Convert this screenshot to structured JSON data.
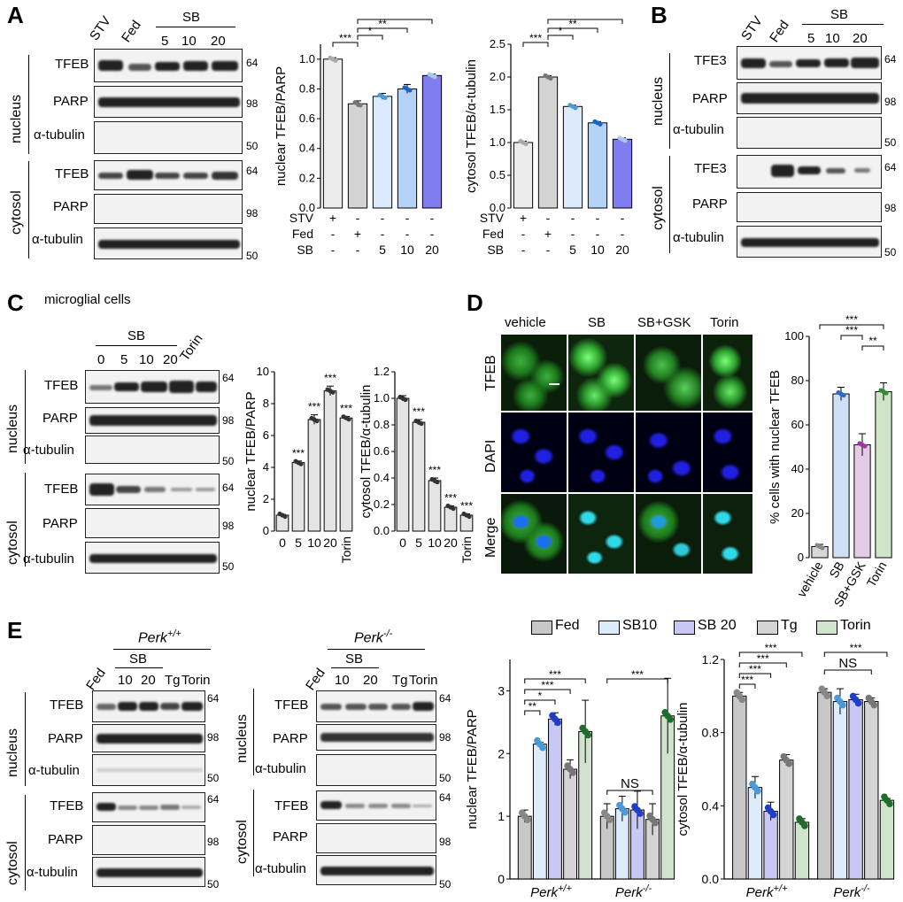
{
  "panels": {
    "A": "A",
    "B": "B",
    "C": "C",
    "D": "D",
    "E": "E"
  },
  "common": {
    "nucleus": "nucleus",
    "cytosol": "cytosol",
    "tfeb": "TFEB",
    "tfe3": "TFE3",
    "parp": "PARP",
    "tubulin": "α-tubulin",
    "stv": "STV",
    "fed": "Fed",
    "sb": "SB",
    "tg": "Tg",
    "torin": "Torin",
    "mw64": "64",
    "mw98": "98",
    "mw50": "50",
    "s5": "5",
    "s10": "10",
    "s20": "20",
    "s0": "0"
  },
  "panel_c_title": "microglial cells",
  "panel_d": {
    "cols": [
      "vehicle",
      "SB",
      "SB+GSK",
      "Torin"
    ],
    "rows": [
      "TFEB",
      "DAPI",
      "Merge"
    ]
  },
  "panel_e": {
    "perk_wt": "Perk",
    "perk_ko": "Perk",
    "sup_wt": "+/+",
    "sup_ko": "-/-",
    "legend": [
      {
        "label": "Fed",
        "color": "#c8c8c8"
      },
      {
        "label": "SB10",
        "color": "#dcecfb"
      },
      {
        "label": "SB 20",
        "color": "#c9c8f4"
      },
      {
        "label": "Tg",
        "color": "#d4d4d4"
      },
      {
        "label": "Torin",
        "color": "#cfe3cd"
      }
    ]
  },
  "treat_table": {
    "rows": [
      "STV",
      "Fed",
      "SB"
    ],
    "vals": [
      [
        "+",
        "-",
        "-",
        "-",
        "-"
      ],
      [
        "-",
        "+",
        "-",
        "-",
        "-"
      ],
      [
        "-",
        "-",
        "5",
        "10",
        "20"
      ]
    ]
  },
  "chart_data": [
    {
      "id": "A_nuclear",
      "type": "bar",
      "ylabel": "nuclear TFEB/PARP",
      "ylim": [
        0,
        1.1
      ],
      "yticks": [
        "0.0",
        "0.2",
        "0.4",
        "0.6",
        "0.8",
        "1.0"
      ],
      "tickvals": [
        0,
        0.2,
        0.4,
        0.6,
        0.8,
        1.0
      ],
      "values": [
        1.0,
        0.7,
        0.75,
        0.8,
        0.89
      ],
      "errors": [
        0.01,
        0.02,
        0.02,
        0.03,
        0.01
      ],
      "colors": [
        "#ececec",
        "#d4d4d4",
        "#dcebfb",
        "#b5d2f7",
        "#7f7df0"
      ],
      "dotcolors": [
        "#aaaaaa",
        "#777777",
        "#4a9ad8",
        "#1f5fd0",
        "#a8c8f0"
      ],
      "sig": [
        {
          "a": 0,
          "b": 1,
          "t": "***"
        },
        {
          "a": 1,
          "b": 2,
          "t": "*"
        },
        {
          "a": 1,
          "b": 3,
          "t": "**"
        },
        {
          "a": 1,
          "b": 4,
          "t": "***"
        }
      ]
    },
    {
      "id": "A_cytosol",
      "type": "bar",
      "ylabel": "cytosol TFEB/α-tubulin",
      "ylim": [
        0,
        2.5
      ],
      "yticks": [
        "0.0",
        "0.5",
        "1.0",
        "1.5",
        "2.0",
        "2.5"
      ],
      "tickvals": [
        0,
        0.5,
        1.0,
        1.5,
        2.0,
        2.5
      ],
      "values": [
        1.0,
        2.0,
        1.55,
        1.3,
        1.05
      ],
      "errors": [
        0.02,
        0.02,
        0.02,
        0.02,
        0.02
      ],
      "colors": [
        "#ececec",
        "#d4d4d4",
        "#dcebfb",
        "#b5d2f7",
        "#7f7df0"
      ],
      "dotcolors": [
        "#aaaaaa",
        "#777777",
        "#4a9ad8",
        "#1f5fd0",
        "#a8c8f0"
      ],
      "sig": [
        {
          "a": 0,
          "b": 1,
          "t": "***"
        },
        {
          "a": 1,
          "b": 2,
          "t": "*"
        },
        {
          "a": 1,
          "b": 3,
          "t": "**"
        },
        {
          "a": 1,
          "b": 4,
          "t": "***"
        }
      ]
    },
    {
      "id": "C_nuclear",
      "type": "bar",
      "ylabel": "nuclear TFEB/PARP",
      "ylim": [
        0,
        10
      ],
      "yticks": [
        "0",
        "2",
        "4",
        "6",
        "8",
        "10"
      ],
      "tickvals": [
        0,
        2,
        4,
        6,
        8,
        10
      ],
      "categories": [
        "0",
        "5",
        "10",
        "20",
        "Torin"
      ],
      "values": [
        1.0,
        4.3,
        7.0,
        8.8,
        7.1
      ],
      "errors": [
        0.05,
        0.1,
        0.3,
        0.3,
        0.1
      ],
      "labels": [
        "",
        "***",
        "***",
        "***",
        "***"
      ]
    },
    {
      "id": "C_cytosol",
      "type": "bar",
      "ylabel": "cytosol TFEB/α-tubulin",
      "ylim": [
        0,
        1.2
      ],
      "yticks": [
        "0.0",
        "0.2",
        "0.4",
        "0.6",
        "0.8",
        "1.0",
        "1.2"
      ],
      "tickvals": [
        0,
        0.2,
        0.4,
        0.6,
        0.8,
        1.0,
        1.2
      ],
      "categories": [
        "0",
        "5",
        "10",
        "20",
        "Torin"
      ],
      "values": [
        1.0,
        0.82,
        0.38,
        0.18,
        0.12
      ],
      "errors": [
        0.02,
        0.02,
        0.02,
        0.01,
        0.01
      ],
      "labels": [
        "",
        "***",
        "***",
        "***",
        "***"
      ]
    },
    {
      "id": "D_pct",
      "type": "bar",
      "ylabel": "% cells with nuclear TFEB",
      "ylim": [
        0,
        100
      ],
      "yticks": [
        "0",
        "20",
        "40",
        "60",
        "80",
        "100"
      ],
      "tickvals": [
        0,
        20,
        40,
        60,
        80,
        100
      ],
      "categories": [
        "vehicle",
        "SB",
        "SB+GSK",
        "Torin"
      ],
      "values": [
        5,
        74,
        51,
        75
      ],
      "errors": [
        1,
        3,
        5,
        4
      ],
      "colors": [
        "#d8d8d8",
        "#cfe0f6",
        "#e6cbe6",
        "#cfe5c8"
      ],
      "dotcolors": [
        "#888888",
        "#2b6dc9",
        "#a035a8",
        "#2e8b38"
      ],
      "sig": [
        {
          "a": 0,
          "b": 3,
          "t": "***"
        },
        {
          "a": 1,
          "b": 2,
          "t": "***"
        },
        {
          "a": 2,
          "b": 3,
          "t": "**"
        }
      ]
    },
    {
      "id": "E_nuclear",
      "type": "bar",
      "ylabel": "nuclear TFEB/PARP",
      "ylim": [
        0,
        3.5
      ],
      "yticks": [
        "0",
        "1",
        "2",
        "3"
      ],
      "tickvals": [
        0,
        1,
        2,
        3
      ],
      "groups": [
        "Perk+/+",
        "Perk-/-"
      ],
      "series": [
        [
          1.0,
          1.0
        ],
        [
          2.15,
          1.12
        ],
        [
          2.55,
          1.1
        ],
        [
          1.75,
          0.95
        ],
        [
          2.35,
          2.6
        ]
      ],
      "errors": [
        [
          0.1,
          0.2
        ],
        [
          0.03,
          0.2
        ],
        [
          0.1,
          0.3
        ],
        [
          0.15,
          0.25
        ],
        [
          0.5,
          0.6
        ]
      ],
      "sig": [
        "**",
        "*",
        "***",
        "***"
      ],
      "sig_ko": "***",
      "ns": "NS"
    },
    {
      "id": "E_cytosol",
      "type": "bar",
      "ylabel": "cytosol TFEB/α-tubulin",
      "ylim": [
        0,
        1.2
      ],
      "yticks": [
        "0.0",
        "0.4",
        "0.8",
        "1.2"
      ],
      "tickvals": [
        0,
        0.4,
        0.8,
        1.2
      ],
      "groups": [
        "Perk+/+",
        "Perk-/-"
      ],
      "series": [
        [
          1.0,
          1.02
        ],
        [
          0.5,
          0.97
        ],
        [
          0.37,
          0.98
        ],
        [
          0.65,
          0.97
        ],
        [
          0.31,
          0.43
        ]
      ],
      "errors": [
        [
          0.02,
          0.02
        ],
        [
          0.06,
          0.07
        ],
        [
          0.05,
          0.03
        ],
        [
          0.03,
          0.02
        ],
        [
          0.02,
          0.01
        ]
      ],
      "sig": [
        "***",
        "***",
        "***",
        "***"
      ],
      "sig_ko": "***",
      "ns": "NS"
    }
  ]
}
